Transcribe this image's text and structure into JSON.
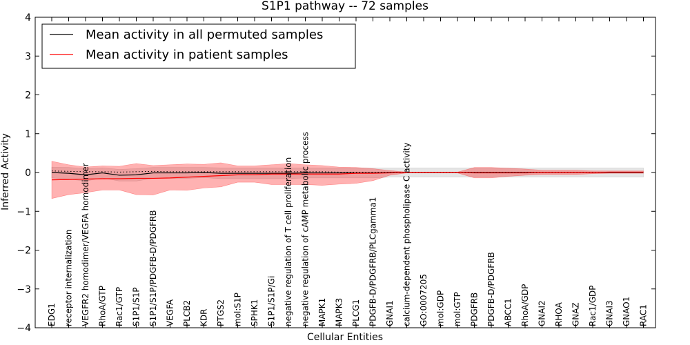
{
  "chart_data": {
    "type": "line",
    "title": "S1P1 pathway -- 72 samples",
    "xlabel": "Cellular Entities",
    "ylabel": "Inferred Activity",
    "ylim": [
      -4,
      4
    ],
    "yticks": [
      -4,
      -3,
      -2,
      -1,
      0,
      1,
      2,
      3,
      4
    ],
    "ytick_labels": [
      "−4",
      "−3",
      "−2",
      "−1",
      "0",
      "1",
      "2",
      "3",
      "4"
    ],
    "legend": {
      "position": "top-left",
      "entries": [
        {
          "label": "Mean activity in all permuted samples",
          "color": "#000000"
        },
        {
          "label": "Mean activity in patient samples",
          "color": "#ff0000"
        }
      ]
    },
    "categories": [
      "EDG1",
      "receptor internalization",
      "VEGFR2 homodimer/VEGFA homodimer",
      "RhoA/GTP",
      "Rac1/GTP",
      "S1P1/S1P",
      "S1P1/S1P/PDGFB-D/PDGFRB",
      "VEGFA",
      "PLCB2",
      "KDR",
      "PTGS2",
      "mol:S1P",
      "SPHK1",
      "S1P1/S1P/Gi",
      "negative regulation of T cell proliferation",
      "negative regulation of cAMP metabolic process",
      "MAPK1",
      "MAPK3",
      "PLCG1",
      "PDGFB-D/PDGFRB/PLCgamma1",
      "GNAI1",
      "calcium-dependent phospholipase C activity",
      "GO:0007205",
      "mol:GDP",
      "mol:GTP",
      "PDGFRB",
      "PDGFB-D/PDGFRB",
      "ABCC1",
      "RhoA/GDP",
      "GNAI2",
      "RHOA",
      "GNAZ",
      "Rac1/GDP",
      "GNAI3",
      "GNAO1",
      "RAC1"
    ],
    "series": [
      {
        "name": "Mean activity in all permuted samples",
        "color": "#000000",
        "values": [
          0.0,
          -0.02,
          -0.06,
          -0.01,
          -0.07,
          -0.06,
          -0.01,
          -0.01,
          -0.01,
          0.0,
          -0.02,
          -0.02,
          -0.02,
          -0.02,
          -0.02,
          -0.01,
          -0.01,
          -0.01,
          -0.01,
          -0.01,
          0.0,
          0.0,
          0.0,
          0.0,
          0.0,
          0.0,
          0.0,
          0.0,
          0.0,
          0.0,
          0.0,
          0.0,
          0.0,
          0.0,
          0.0,
          0.0
        ],
        "upper": [
          0.14,
          0.13,
          0.1,
          0.12,
          0.08,
          0.1,
          0.13,
          0.13,
          0.13,
          0.13,
          0.12,
          0.12,
          0.12,
          0.12,
          0.12,
          0.12,
          0.12,
          0.12,
          0.12,
          0.12,
          0.12,
          0.12,
          0.12,
          0.12,
          0.12,
          0.12,
          0.12,
          0.12,
          0.12,
          0.12,
          0.12,
          0.12,
          0.12,
          0.12,
          0.12,
          0.12
        ],
        "lower": [
          -0.14,
          -0.17,
          -0.22,
          -0.14,
          -0.22,
          -0.22,
          -0.15,
          -0.15,
          -0.15,
          -0.13,
          -0.16,
          -0.16,
          -0.16,
          -0.16,
          -0.16,
          -0.14,
          -0.14,
          -0.14,
          -0.14,
          -0.14,
          -0.12,
          -0.12,
          -0.12,
          -0.12,
          -0.12,
          -0.12,
          -0.12,
          -0.12,
          -0.12,
          -0.12,
          -0.12,
          -0.12,
          -0.12,
          -0.12,
          -0.12,
          -0.12
        ],
        "dotted_upper": [
          0.04,
          0.03,
          0.02,
          0.02,
          0.01,
          0.02,
          0.03,
          0.02,
          0.02,
          0.02,
          0.02,
          0.02,
          0.02,
          0.02,
          0.02,
          0.02,
          0.02,
          0.01,
          0.01,
          0.01,
          0.01,
          0.01,
          0.01,
          0.01,
          0.01,
          0.01,
          0.01,
          0.01,
          0.01,
          0.01,
          0.01,
          0.01,
          0.01,
          0.01,
          0.01,
          0.01
        ]
      },
      {
        "name": "Mean activity in patient samples",
        "color": "#ff0000",
        "values": [
          -0.19,
          -0.18,
          -0.17,
          -0.16,
          -0.16,
          -0.15,
          -0.15,
          -0.14,
          -0.12,
          -0.1,
          -0.08,
          -0.06,
          -0.06,
          -0.04,
          -0.04,
          -0.04,
          -0.04,
          -0.04,
          -0.02,
          -0.02,
          -0.01,
          0.0,
          0.0,
          0.0,
          0.0,
          -0.01,
          -0.01,
          -0.01,
          -0.01,
          0.0,
          0.0,
          0.0,
          0.0,
          0.01,
          0.01,
          0.01
        ],
        "upper": [
          0.29,
          0.2,
          0.14,
          0.17,
          0.16,
          0.23,
          0.18,
          0.2,
          0.22,
          0.21,
          0.25,
          0.17,
          0.17,
          0.2,
          0.23,
          0.2,
          0.18,
          0.14,
          0.13,
          0.1,
          0.05,
          0.01,
          0.01,
          0.01,
          0.01,
          0.13,
          0.13,
          0.11,
          0.09,
          0.06,
          0.06,
          0.06,
          0.04,
          0.04,
          0.04,
          0.04
        ],
        "lower": [
          -0.67,
          -0.57,
          -0.52,
          -0.45,
          -0.45,
          -0.57,
          -0.58,
          -0.45,
          -0.46,
          -0.4,
          -0.37,
          -0.25,
          -0.25,
          -0.31,
          -0.31,
          -0.31,
          -0.33,
          -0.3,
          -0.28,
          -0.21,
          -0.07,
          -0.01,
          -0.01,
          -0.01,
          -0.01,
          -0.14,
          -0.14,
          -0.1,
          -0.07,
          -0.05,
          -0.05,
          -0.05,
          -0.03,
          -0.02,
          -0.02,
          -0.02
        ]
      }
    ]
  }
}
